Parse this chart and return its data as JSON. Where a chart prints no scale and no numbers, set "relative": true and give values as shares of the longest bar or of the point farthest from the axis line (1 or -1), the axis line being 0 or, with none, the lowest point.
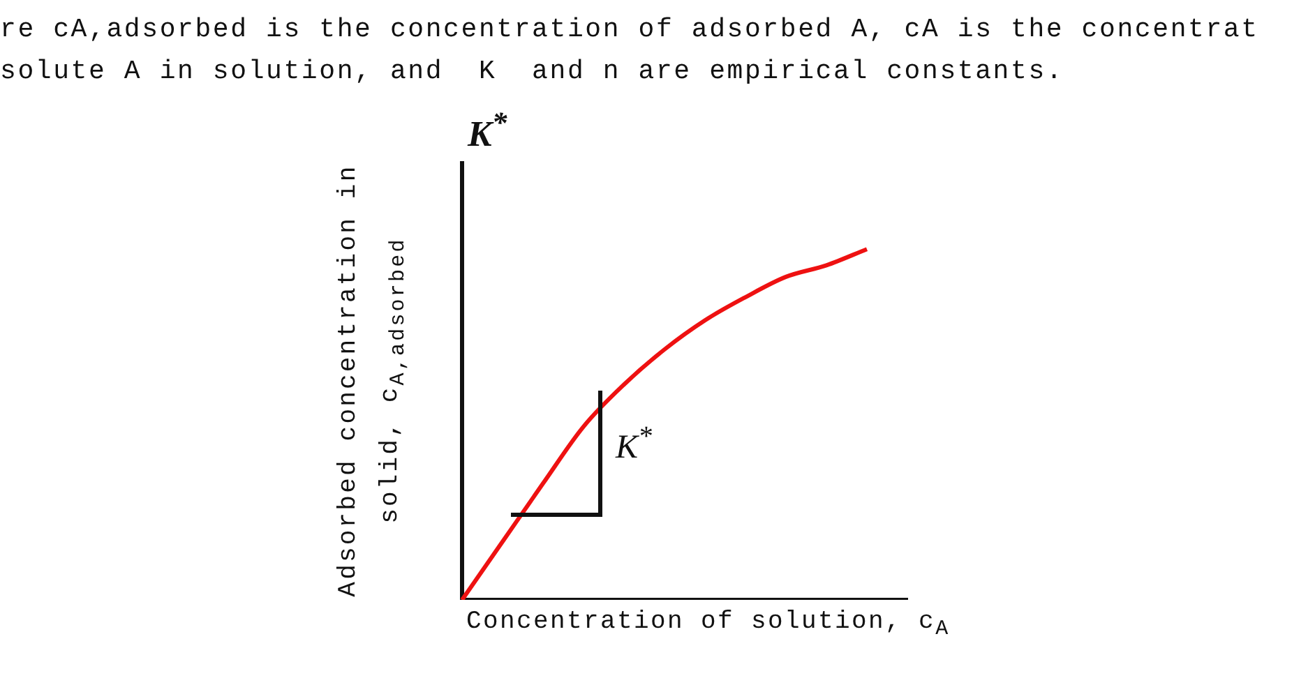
{
  "chart_data": {
    "type": "line",
    "relative": true,
    "xlabel": "Concentration of solution, c$_{A}$",
    "ylabel": "Adsorbed concentration in solid, c$_{A,adsorbed}$",
    "annotations": [
      "re cA,adsorbed is the concentration of adsorbed A, cA is the concentrat",
      "solute A in solution, and  K  and n are empirical constants.",
      "K$^{*}$",
      "K$^{*}$"
    ],
    "categories": [
      null,
      null,
      null,
      null,
      null,
      null,
      null,
      null,
      null,
      null,
      null,
      null
    ],
    "values": [
      0,
      0.166,
      0.332,
      0.494,
      0.614,
      0.714,
      0.797,
      0.863,
      0.921,
      0.954,
      1.0,
      null
    ],
    "color": "#ee1111",
    "marker": "none",
    "tick_labels": false
  }
}
